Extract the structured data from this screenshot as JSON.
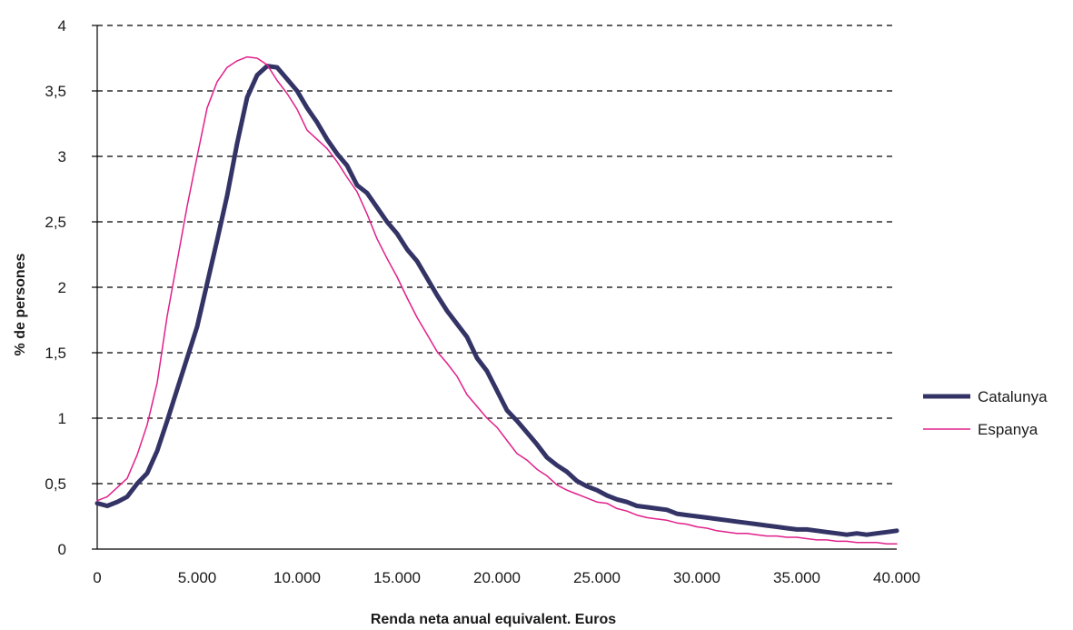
{
  "chart_data": {
    "type": "line",
    "title": "",
    "xlabel": "Renda neta anual equivalent. Euros",
    "ylabel": "% de persones",
    "xlim": [
      0,
      40000
    ],
    "ylim": [
      0,
      4
    ],
    "x_ticks": [
      0,
      5000,
      10000,
      15000,
      20000,
      25000,
      30000,
      35000,
      40000
    ],
    "x_tick_labels": [
      "0",
      "5.000",
      "10.000",
      "15.000",
      "20.000",
      "25.000",
      "30.000",
      "35.000",
      "40.000"
    ],
    "y_ticks": [
      0,
      0.5,
      1,
      1.5,
      2,
      2.5,
      3,
      3.5,
      4
    ],
    "y_tick_labels": [
      "0",
      "0,5",
      "1",
      "1,5",
      "2",
      "2,5",
      "3",
      "3,5",
      "4"
    ],
    "grid": "horizontal dashed",
    "legend_position": "right",
    "series": [
      {
        "name": "Catalunya",
        "color": "#333366",
        "points": [
          [
            0,
            0.35
          ],
          [
            500,
            0.33
          ],
          [
            1000,
            0.36
          ],
          [
            1500,
            0.4
          ],
          [
            2000,
            0.5
          ],
          [
            2500,
            0.58
          ],
          [
            3000,
            0.75
          ],
          [
            3500,
            0.98
          ],
          [
            4000,
            1.22
          ],
          [
            4500,
            1.46
          ],
          [
            5000,
            1.7
          ],
          [
            5500,
            2.03
          ],
          [
            6000,
            2.36
          ],
          [
            6500,
            2.7
          ],
          [
            7000,
            3.1
          ],
          [
            7500,
            3.45
          ],
          [
            8000,
            3.62
          ],
          [
            8500,
            3.69
          ],
          [
            9000,
            3.68
          ],
          [
            9500,
            3.59
          ],
          [
            10000,
            3.5
          ],
          [
            10500,
            3.37
          ],
          [
            11000,
            3.26
          ],
          [
            11500,
            3.13
          ],
          [
            12000,
            3.02
          ],
          [
            12500,
            2.93
          ],
          [
            13000,
            2.78
          ],
          [
            13500,
            2.72
          ],
          [
            14000,
            2.61
          ],
          [
            14500,
            2.5
          ],
          [
            15000,
            2.41
          ],
          [
            15500,
            2.29
          ],
          [
            16000,
            2.2
          ],
          [
            16500,
            2.07
          ],
          [
            17000,
            1.94
          ],
          [
            17500,
            1.82
          ],
          [
            18000,
            1.72
          ],
          [
            18500,
            1.62
          ],
          [
            19000,
            1.46
          ],
          [
            19500,
            1.36
          ],
          [
            20000,
            1.21
          ],
          [
            20500,
            1.06
          ],
          [
            21000,
            0.98
          ],
          [
            21500,
            0.89
          ],
          [
            22000,
            0.8
          ],
          [
            22500,
            0.7
          ],
          [
            23000,
            0.64
          ],
          [
            23500,
            0.59
          ],
          [
            24000,
            0.52
          ],
          [
            24500,
            0.48
          ],
          [
            25000,
            0.45
          ],
          [
            25500,
            0.41
          ],
          [
            26000,
            0.38
          ],
          [
            26500,
            0.36
          ],
          [
            27000,
            0.33
          ],
          [
            27500,
            0.32
          ],
          [
            28000,
            0.31
          ],
          [
            28500,
            0.3
          ],
          [
            29000,
            0.27
          ],
          [
            29500,
            0.26
          ],
          [
            30000,
            0.25
          ],
          [
            30500,
            0.24
          ],
          [
            31000,
            0.23
          ],
          [
            31500,
            0.22
          ],
          [
            32000,
            0.21
          ],
          [
            32500,
            0.2
          ],
          [
            33000,
            0.19
          ],
          [
            33500,
            0.18
          ],
          [
            34000,
            0.17
          ],
          [
            34500,
            0.16
          ],
          [
            35000,
            0.15
          ],
          [
            35500,
            0.15
          ],
          [
            36000,
            0.14
          ],
          [
            36500,
            0.13
          ],
          [
            37000,
            0.12
          ],
          [
            37500,
            0.11
          ],
          [
            38000,
            0.12
          ],
          [
            38500,
            0.11
          ],
          [
            39000,
            0.12
          ],
          [
            39500,
            0.13
          ],
          [
            40000,
            0.14
          ]
        ]
      },
      {
        "name": "Espanya",
        "color": "#e0208a",
        "points": [
          [
            0,
            0.37
          ],
          [
            500,
            0.4
          ],
          [
            1000,
            0.47
          ],
          [
            1500,
            0.54
          ],
          [
            2000,
            0.72
          ],
          [
            2500,
            0.95
          ],
          [
            3000,
            1.27
          ],
          [
            3500,
            1.78
          ],
          [
            4000,
            2.2
          ],
          [
            4500,
            2.62
          ],
          [
            5000,
            3.0
          ],
          [
            5500,
            3.37
          ],
          [
            6000,
            3.57
          ],
          [
            6500,
            3.68
          ],
          [
            7000,
            3.73
          ],
          [
            7500,
            3.76
          ],
          [
            8000,
            3.75
          ],
          [
            8500,
            3.7
          ],
          [
            9000,
            3.58
          ],
          [
            9500,
            3.48
          ],
          [
            10000,
            3.36
          ],
          [
            10500,
            3.2
          ],
          [
            11000,
            3.13
          ],
          [
            11500,
            3.06
          ],
          [
            12000,
            2.96
          ],
          [
            12500,
            2.84
          ],
          [
            13000,
            2.73
          ],
          [
            13500,
            2.56
          ],
          [
            14000,
            2.37
          ],
          [
            14500,
            2.22
          ],
          [
            15000,
            2.08
          ],
          [
            15500,
            1.92
          ],
          [
            16000,
            1.77
          ],
          [
            16500,
            1.64
          ],
          [
            17000,
            1.51
          ],
          [
            17500,
            1.42
          ],
          [
            18000,
            1.32
          ],
          [
            18500,
            1.18
          ],
          [
            19000,
            1.09
          ],
          [
            19500,
            1.0
          ],
          [
            20000,
            0.93
          ],
          [
            20500,
            0.83
          ],
          [
            21000,
            0.73
          ],
          [
            21500,
            0.68
          ],
          [
            22000,
            0.61
          ],
          [
            22500,
            0.56
          ],
          [
            23000,
            0.49
          ],
          [
            23500,
            0.45
          ],
          [
            24000,
            0.42
          ],
          [
            24500,
            0.39
          ],
          [
            25000,
            0.36
          ],
          [
            25500,
            0.35
          ],
          [
            26000,
            0.31
          ],
          [
            26500,
            0.29
          ],
          [
            27000,
            0.26
          ],
          [
            27500,
            0.24
          ],
          [
            28000,
            0.23
          ],
          [
            28500,
            0.22
          ],
          [
            29000,
            0.2
          ],
          [
            29500,
            0.19
          ],
          [
            30000,
            0.17
          ],
          [
            30500,
            0.16
          ],
          [
            31000,
            0.14
          ],
          [
            31500,
            0.13
          ],
          [
            32000,
            0.12
          ],
          [
            32500,
            0.12
          ],
          [
            33000,
            0.11
          ],
          [
            33500,
            0.1
          ],
          [
            34000,
            0.1
          ],
          [
            34500,
            0.09
          ],
          [
            35000,
            0.09
          ],
          [
            35500,
            0.08
          ],
          [
            36000,
            0.07
          ],
          [
            36500,
            0.07
          ],
          [
            37000,
            0.06
          ],
          [
            37500,
            0.06
          ],
          [
            38000,
            0.05
          ],
          [
            38500,
            0.05
          ],
          [
            39000,
            0.05
          ],
          [
            39500,
            0.04
          ],
          [
            40000,
            0.04
          ]
        ]
      }
    ]
  }
}
